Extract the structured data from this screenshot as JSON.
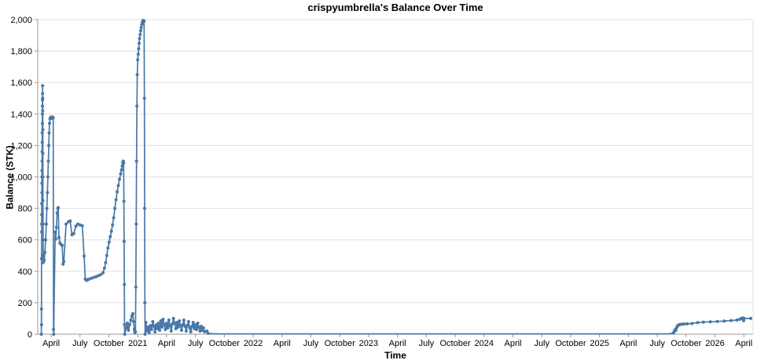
{
  "chart": {
    "title": "crispyumbrella's Balance Over Time",
    "x_axis_title": "Time",
    "y_axis_title": "Balance (STK)"
  },
  "colors": {
    "series": "#4878A8",
    "gridline": "#e0e0e0",
    "axis": "#999999",
    "tick": "#999999",
    "label": "#000000",
    "background": "#ffffff"
  },
  "chart_data": {
    "type": "line",
    "title": "crispyumbrella's Balance Over Time",
    "xlabel": "Time",
    "ylabel": "Balance (STK)",
    "x_unit": "decimal_year",
    "xlim": [
      2020.134,
      2026.33
    ],
    "ylim": [
      0,
      2000
    ],
    "grid": "horizontal-only",
    "legend": "none",
    "marker": "circle",
    "y_ticks": [
      {
        "v": 0,
        "label": "0"
      },
      {
        "v": 200,
        "label": "200"
      },
      {
        "v": 400,
        "label": "400"
      },
      {
        "v": 600,
        "label": "600"
      },
      {
        "v": 800,
        "label": "800"
      },
      {
        "v": 1000,
        "label": "1,000"
      },
      {
        "v": 1200,
        "label": "1,200"
      },
      {
        "v": 1400,
        "label": "1,400"
      },
      {
        "v": 1600,
        "label": "1,600"
      },
      {
        "v": 1800,
        "label": "1,800"
      },
      {
        "v": 2000,
        "label": "2,000"
      }
    ],
    "x_ticks": [
      {
        "v": 2020.25,
        "label": "April"
      },
      {
        "v": 2020.5,
        "label": "July"
      },
      {
        "v": 2020.75,
        "label": "October"
      },
      {
        "v": 2021.0,
        "label": "2021"
      },
      {
        "v": 2021.25,
        "label": "April"
      },
      {
        "v": 2021.5,
        "label": "July"
      },
      {
        "v": 2021.75,
        "label": "October"
      },
      {
        "v": 2022.0,
        "label": "2022"
      },
      {
        "v": 2022.25,
        "label": "April"
      },
      {
        "v": 2022.5,
        "label": "July"
      },
      {
        "v": 2022.75,
        "label": "October"
      },
      {
        "v": 2023.0,
        "label": "2023"
      },
      {
        "v": 2023.25,
        "label": "April"
      },
      {
        "v": 2023.5,
        "label": "July"
      },
      {
        "v": 2023.75,
        "label": "October"
      },
      {
        "v": 2024.0,
        "label": "2024"
      },
      {
        "v": 2024.25,
        "label": "April"
      },
      {
        "v": 2024.5,
        "label": "July"
      },
      {
        "v": 2024.75,
        "label": "October"
      },
      {
        "v": 2025.0,
        "label": "2025"
      },
      {
        "v": 2025.25,
        "label": "April"
      },
      {
        "v": 2025.5,
        "label": "July"
      },
      {
        "v": 2025.75,
        "label": "October"
      },
      {
        "v": 2026.0,
        "label": "2026"
      },
      {
        "v": 2026.25,
        "label": "April"
      }
    ],
    "series": [
      {
        "name": "Balance",
        "points": [
          [
            2020.165,
            0
          ],
          [
            2020.166,
            160
          ],
          [
            2020.167,
            60
          ],
          [
            2020.167,
            480
          ],
          [
            2020.168,
            650
          ],
          [
            2020.168,
            700
          ],
          [
            2020.169,
            760
          ],
          [
            2020.169,
            830
          ],
          [
            2020.17,
            900
          ],
          [
            2020.17,
            960
          ],
          [
            2020.171,
            1000
          ],
          [
            2020.171,
            1040
          ],
          [
            2020.172,
            1100
          ],
          [
            2020.172,
            1160
          ],
          [
            2020.173,
            1220
          ],
          [
            2020.173,
            1280
          ],
          [
            2020.174,
            1340
          ],
          [
            2020.174,
            1400
          ],
          [
            2020.175,
            1450
          ],
          [
            2020.175,
            1490
          ],
          [
            2020.176,
            1530
          ],
          [
            2020.176,
            1580
          ],
          [
            2020.177,
            1500
          ],
          [
            2020.177,
            1420
          ],
          [
            2020.178,
            1300
          ],
          [
            2020.178,
            1150
          ],
          [
            2020.179,
            1000
          ],
          [
            2020.179,
            850
          ],
          [
            2020.18,
            700
          ],
          [
            2020.18,
            600
          ],
          [
            2020.181,
            500
          ],
          [
            2020.182,
            455
          ],
          [
            2020.19,
            470
          ],
          [
            2020.196,
            520
          ],
          [
            2020.202,
            600
          ],
          [
            2020.208,
            700
          ],
          [
            2020.213,
            800
          ],
          [
            2020.218,
            900
          ],
          [
            2020.222,
            1000
          ],
          [
            2020.226,
            1100
          ],
          [
            2020.23,
            1200
          ],
          [
            2020.233,
            1280
          ],
          [
            2020.236,
            1340
          ],
          [
            2020.24,
            1370
          ],
          [
            2020.248,
            1380
          ],
          [
            2020.256,
            1372
          ],
          [
            2020.264,
            1380
          ],
          [
            2020.268,
            1375
          ],
          [
            2020.271,
            30
          ],
          [
            2020.272,
            0
          ],
          [
            2020.285,
            650
          ],
          [
            2020.29,
            605
          ],
          [
            2020.296,
            680
          ],
          [
            2020.302,
            770
          ],
          [
            2020.308,
            800
          ],
          [
            2020.312,
            805
          ],
          [
            2020.318,
            615
          ],
          [
            2020.326,
            580
          ],
          [
            2020.336,
            570
          ],
          [
            2020.346,
            565
          ],
          [
            2020.353,
            445
          ],
          [
            2020.36,
            462
          ],
          [
            2020.38,
            700
          ],
          [
            2020.4,
            715
          ],
          [
            2020.415,
            720
          ],
          [
            2020.43,
            632
          ],
          [
            2020.446,
            640
          ],
          [
            2020.465,
            688
          ],
          [
            2020.482,
            700
          ],
          [
            2020.5,
            695
          ],
          [
            2020.52,
            690
          ],
          [
            2020.536,
            497
          ],
          [
            2020.546,
            350
          ],
          [
            2020.556,
            342
          ],
          [
            2020.566,
            346
          ],
          [
            2020.58,
            350
          ],
          [
            2020.6,
            356
          ],
          [
            2020.62,
            361
          ],
          [
            2020.64,
            366
          ],
          [
            2020.66,
            372
          ],
          [
            2020.68,
            379
          ],
          [
            2020.7,
            390
          ],
          [
            2020.712,
            420
          ],
          [
            2020.722,
            455
          ],
          [
            2020.732,
            500
          ],
          [
            2020.742,
            548
          ],
          [
            2020.752,
            585
          ],
          [
            2020.762,
            620
          ],
          [
            2020.772,
            655
          ],
          [
            2020.782,
            695
          ],
          [
            2020.792,
            740
          ],
          [
            2020.802,
            800
          ],
          [
            2020.812,
            855
          ],
          [
            2020.822,
            905
          ],
          [
            2020.832,
            945
          ],
          [
            2020.842,
            985
          ],
          [
            2020.852,
            1020
          ],
          [
            2020.86,
            1045
          ],
          [
            2020.866,
            1070
          ],
          [
            2020.871,
            1092
          ],
          [
            2020.875,
            1100
          ],
          [
            2020.878,
            1088
          ],
          [
            2020.88,
            845
          ],
          [
            2020.882,
            590
          ],
          [
            2020.884,
            315
          ],
          [
            2020.886,
            60
          ],
          [
            2020.888,
            0
          ],
          [
            2020.9,
            40
          ],
          [
            2020.91,
            70
          ],
          [
            2020.92,
            25
          ],
          [
            2020.93,
            60
          ],
          [
            2020.94,
            90
          ],
          [
            2020.95,
            115
          ],
          [
            2020.958,
            130
          ],
          [
            2020.964,
            80
          ],
          [
            2020.97,
            30
          ],
          [
            2020.975,
            10
          ],
          [
            2020.98,
            15
          ],
          [
            2020.984,
            300
          ],
          [
            2020.987,
            700
          ],
          [
            2020.99,
            1100
          ],
          [
            2020.993,
            1450
          ],
          [
            2020.996,
            1650
          ],
          [
            2021.0,
            1745
          ],
          [
            2021.004,
            1780
          ],
          [
            2021.008,
            1815
          ],
          [
            2021.012,
            1850
          ],
          [
            2021.016,
            1880
          ],
          [
            2021.021,
            1905
          ],
          [
            2021.026,
            1930
          ],
          [
            2021.031,
            1950
          ],
          [
            2021.036,
            1970
          ],
          [
            2021.041,
            1985
          ],
          [
            2021.046,
            1995
          ],
          [
            2021.051,
            1988
          ],
          [
            2021.055,
            1992
          ],
          [
            2021.058,
            1500
          ],
          [
            2021.06,
            800
          ],
          [
            2021.062,
            200
          ],
          [
            2021.064,
            0
          ],
          [
            2021.07,
            75
          ],
          [
            2021.08,
            20
          ],
          [
            2021.09,
            45
          ],
          [
            2021.1,
            10
          ],
          [
            2021.11,
            55
          ],
          [
            2021.12,
            30
          ],
          [
            2021.13,
            80
          ],
          [
            2021.14,
            50
          ],
          [
            2021.15,
            15
          ],
          [
            2021.16,
            60
          ],
          [
            2021.17,
            35
          ],
          [
            2021.18,
            70
          ],
          [
            2021.19,
            25
          ],
          [
            2021.2,
            85
          ],
          [
            2021.21,
            45
          ],
          [
            2021.22,
            95
          ],
          [
            2021.23,
            60
          ],
          [
            2021.24,
            30
          ],
          [
            2021.25,
            70
          ],
          [
            2021.26,
            40
          ],
          [
            2021.27,
            90
          ],
          [
            2021.28,
            55
          ],
          [
            2021.29,
            20
          ],
          [
            2021.3,
            65
          ],
          [
            2021.31,
            100
          ],
          [
            2021.32,
            70
          ],
          [
            2021.33,
            35
          ],
          [
            2021.34,
            75
          ],
          [
            2021.35,
            45
          ],
          [
            2021.36,
            85
          ],
          [
            2021.37,
            55
          ],
          [
            2021.38,
            25
          ],
          [
            2021.39,
            60
          ],
          [
            2021.4,
            90
          ],
          [
            2021.41,
            50
          ],
          [
            2021.42,
            20
          ],
          [
            2021.43,
            55
          ],
          [
            2021.44,
            80
          ],
          [
            2021.45,
            40
          ],
          [
            2021.46,
            15
          ],
          [
            2021.47,
            50
          ],
          [
            2021.48,
            75
          ],
          [
            2021.49,
            35
          ],
          [
            2021.5,
            60
          ],
          [
            2021.51,
            30
          ],
          [
            2021.52,
            70
          ],
          [
            2021.53,
            45
          ],
          [
            2021.54,
            20
          ],
          [
            2021.55,
            50
          ],
          [
            2021.56,
            25
          ],
          [
            2021.57,
            40
          ],
          [
            2021.58,
            15
          ],
          [
            2021.6,
            20
          ],
          [
            2021.61,
            5
          ],
          [
            2021.65,
            3,
            0
          ],
          [
            2021.7,
            2,
            0
          ],
          [
            2021.8,
            2,
            0
          ],
          [
            2022.0,
            2,
            0
          ],
          [
            2022.25,
            2,
            0
          ],
          [
            2022.5,
            2,
            0
          ],
          [
            2022.75,
            2,
            0
          ],
          [
            2023.0,
            2,
            0
          ],
          [
            2023.25,
            2,
            0
          ],
          [
            2023.5,
            2,
            0
          ],
          [
            2023.75,
            2,
            0
          ],
          [
            2024.0,
            2,
            0
          ],
          [
            2024.25,
            2,
            0
          ],
          [
            2024.5,
            2,
            0
          ],
          [
            2024.75,
            2,
            0
          ],
          [
            2025.0,
            2,
            0
          ],
          [
            2025.25,
            2,
            0
          ],
          [
            2025.5,
            2,
            0
          ],
          [
            2025.6,
            2,
            0
          ],
          [
            2025.64,
            8
          ],
          [
            2025.648,
            18
          ],
          [
            2025.654,
            28
          ],
          [
            2025.66,
            24
          ],
          [
            2025.666,
            38
          ],
          [
            2025.672,
            48
          ],
          [
            2025.68,
            56
          ],
          [
            2025.69,
            60
          ],
          [
            2025.7,
            62
          ],
          [
            2025.715,
            64
          ],
          [
            2025.735,
            65
          ],
          [
            2025.76,
            66
          ],
          [
            2025.8,
            68
          ],
          [
            2025.85,
            74
          ],
          [
            2025.9,
            77
          ],
          [
            2025.96,
            79
          ],
          [
            2026.02,
            81
          ],
          [
            2026.08,
            84
          ],
          [
            2026.14,
            87
          ],
          [
            2026.19,
            90
          ],
          [
            2026.215,
            95
          ],
          [
            2026.225,
            99
          ],
          [
            2026.235,
            102
          ],
          [
            2026.242,
            103
          ],
          [
            2026.248,
            86
          ],
          [
            2026.252,
            100
          ],
          [
            2026.31,
            100
          ]
        ]
      }
    ]
  }
}
